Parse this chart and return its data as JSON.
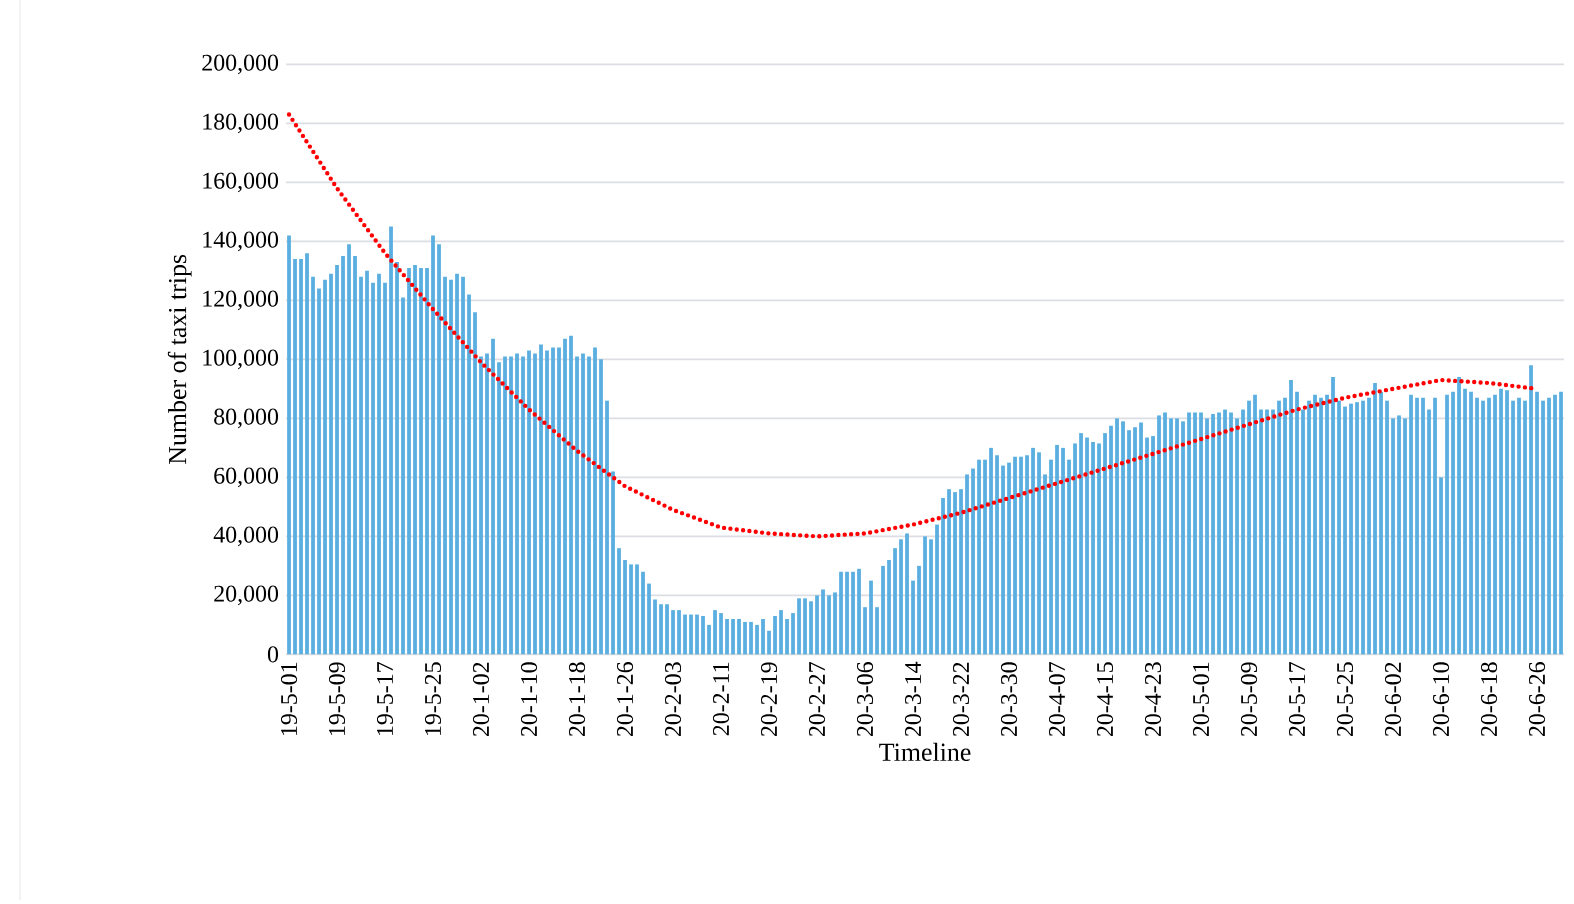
{
  "chart_data": {
    "type": "bar",
    "xlabel": "Timeline",
    "ylabel": "Number of taxi  trips",
    "categories": [
      "19-5-01",
      null,
      null,
      null,
      null,
      null,
      null,
      null,
      "19-5-09",
      null,
      null,
      null,
      null,
      null,
      null,
      null,
      "19-5-17",
      null,
      null,
      null,
      null,
      null,
      null,
      null,
      "19-5-25",
      null,
      null,
      null,
      null,
      null,
      null,
      null,
      "20-1-02",
      null,
      null,
      null,
      null,
      null,
      null,
      null,
      "20-1-10",
      null,
      null,
      null,
      null,
      null,
      null,
      null,
      "20-1-18",
      null,
      null,
      null,
      null,
      null,
      null,
      null,
      "20-1-26",
      null,
      null,
      null,
      null,
      null,
      null,
      null,
      "20-2-03",
      null,
      null,
      null,
      null,
      null,
      null,
      null,
      "20-2-11",
      null,
      null,
      null,
      null,
      null,
      null,
      null,
      "20-2-19",
      null,
      null,
      null,
      null,
      null,
      null,
      null,
      "20-2-27",
      null,
      null,
      null,
      null,
      null,
      null,
      null,
      "20-3-06",
      null,
      null,
      null,
      null,
      null,
      null,
      null,
      "20-3-14",
      null,
      null,
      null,
      null,
      null,
      null,
      null,
      "20-3-22",
      null,
      null,
      null,
      null,
      null,
      null,
      null,
      "20-3-30",
      null,
      null,
      null,
      null,
      null,
      null,
      null,
      "20-4-07",
      null,
      null,
      null,
      null,
      null,
      null,
      null,
      "20-4-15",
      null,
      null,
      null,
      null,
      null,
      null,
      null,
      "20-4-23",
      null,
      null,
      null,
      null,
      null,
      null,
      null,
      "20-5-01",
      null,
      null,
      null,
      null,
      null,
      null,
      null,
      "20-5-09",
      null,
      null,
      null,
      null,
      null,
      null,
      null,
      "20-5-17",
      null,
      null,
      null,
      null,
      null,
      null,
      null,
      "20-5-25",
      null,
      null,
      null,
      null,
      null,
      null,
      null,
      "20-6-02",
      null,
      null,
      null,
      null,
      null,
      null,
      null,
      "20-6-10",
      null,
      null,
      null,
      null,
      null,
      null,
      null,
      "20-6-18",
      null,
      null,
      null,
      null,
      null,
      null,
      null,
      "20-6-26",
      null,
      null,
      null,
      null
    ],
    "series": [
      {
        "color": "#5aafe0",
        "values": [
          142000,
          134000,
          134000,
          136000,
          128000,
          124000,
          127000,
          129000,
          132000,
          135000,
          139000,
          135000,
          128000,
          130000,
          126000,
          129000,
          126000,
          145000,
          133000,
          121000,
          131000,
          132000,
          131000,
          131000,
          142000,
          139000,
          128000,
          127000,
          129000,
          128000,
          122000,
          116000,
          101000,
          102000,
          107000,
          99000,
          101000,
          101000,
          102000,
          101000,
          103000,
          102000,
          105000,
          103000,
          104000,
          104000,
          107000,
          108000,
          101000,
          102000,
          101000,
          104000,
          100000,
          86000,
          62000,
          36000,
          32000,
          30500,
          30500,
          28000,
          24000,
          18600,
          17000,
          17000,
          15000,
          15000,
          13500,
          13500,
          13500,
          13000,
          10000,
          15000,
          14000,
          12000,
          12000,
          12000,
          11000,
          11000,
          10000,
          12000,
          8000,
          13000,
          15000,
          12000,
          14000,
          19000,
          19000,
          18000,
          20000,
          22000,
          20000,
          21000,
          28000,
          28000,
          28000,
          29000,
          16000,
          25000,
          16000,
          30000,
          32000,
          36000,
          39000,
          41000,
          25000,
          30000,
          40000,
          39000,
          44000,
          53000,
          56000,
          55000,
          56000,
          61000,
          63000,
          66000,
          66000,
          70000,
          67500,
          64000,
          65000,
          67000,
          67000,
          67500,
          70000,
          68500,
          61000,
          66000,
          71000,
          70000,
          66000,
          71500,
          75000,
          73500,
          72000,
          71500,
          75000,
          77500,
          80000,
          79000,
          76000,
          77000,
          78600,
          73500,
          74000,
          81000,
          82000,
          80000,
          80000,
          79000,
          82000,
          82000,
          82000,
          80000,
          81500,
          82000,
          83000,
          82000,
          80000,
          83000,
          86000,
          88000,
          83000,
          83000,
          83000,
          86000,
          87000,
          93000,
          89000,
          83000,
          86000,
          88000,
          87000,
          88000,
          94000,
          86000,
          84000,
          85000,
          85500,
          86000,
          87000,
          92000,
          89000,
          86000,
          80000,
          81000,
          80000,
          88000,
          87000,
          87000,
          83000,
          87000,
          60000,
          88000,
          89000,
          94000,
          90000,
          89000,
          87000,
          86000,
          87000,
          88000,
          90000,
          89500,
          86000,
          87000,
          86000,
          98000,
          89000,
          86000,
          87000,
          88000,
          89000
        ]
      },
      {
        "type": "line",
        "color": "#ff0000",
        "line_style": "dotted",
        "marker": "none",
        "x": [
          "19-5-01",
          "19-5-09",
          "19-5-17",
          "19-5-25",
          "20-1-02",
          "20-1-10",
          "20-1-18",
          "20-1-26",
          "20-2-03",
          "20-2-11",
          "20-2-19",
          "20-2-27",
          "20-3-06",
          "20-3-14",
          "20-3-22",
          "20-3-30",
          "20-4-07",
          "20-4-15",
          "20-4-23",
          "20-5-01",
          "20-5-09",
          "20-5-17",
          "20-5-25",
          "20-6-02",
          "20-6-10",
          "20-6-18",
          "20-6-26"
        ],
        "values": [
          183000,
          158000,
          136000,
          117000,
          99000,
          83000,
          69000,
          57000,
          49000,
          43000,
          41000,
          40000,
          41000,
          44000,
          48000,
          53000,
          58000,
          63000,
          68000,
          73000,
          78000,
          83000,
          87000,
          90000,
          93000,
          92000,
          90000
        ]
      }
    ],
    "ylim": [
      0,
      200000
    ],
    "yticks": [
      {
        "value": 0,
        "label": "0"
      },
      {
        "value": 20000,
        "label": "20,000"
      },
      {
        "value": 40000,
        "label": "40,000"
      },
      {
        "value": 60000,
        "label": "60,000"
      },
      {
        "value": 80000,
        "label": "80,000"
      },
      {
        "value": 100000,
        "label": "100,000"
      },
      {
        "value": 120000,
        "label": "120,000"
      },
      {
        "value": 140000,
        "label": "140,000"
      },
      {
        "value": 160000,
        "label": "160,000"
      },
      {
        "value": 180000,
        "label": "180,000"
      },
      {
        "value": 200000,
        "label": "200,000"
      }
    ],
    "grid": "y"
  }
}
